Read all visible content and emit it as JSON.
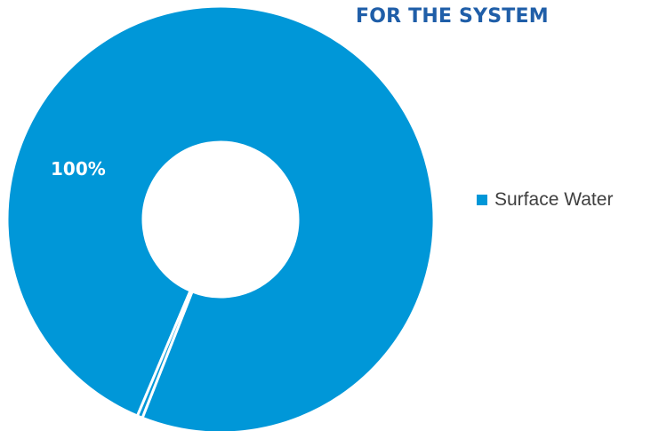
{
  "colors": {
    "series": "#0097d8",
    "title": "#1f5ea8",
    "data_label": "#ffffff"
  },
  "chart_data": {
    "type": "pie",
    "variant": "donut",
    "title": "FOR THE SYSTEM",
    "labels": [
      "Surface Water",
      ""
    ],
    "values": [
      99.6,
      0.4
    ],
    "data_labels": [
      "100%"
    ],
    "legend": {
      "position": "right",
      "entries": [
        "Surface Water"
      ]
    }
  }
}
